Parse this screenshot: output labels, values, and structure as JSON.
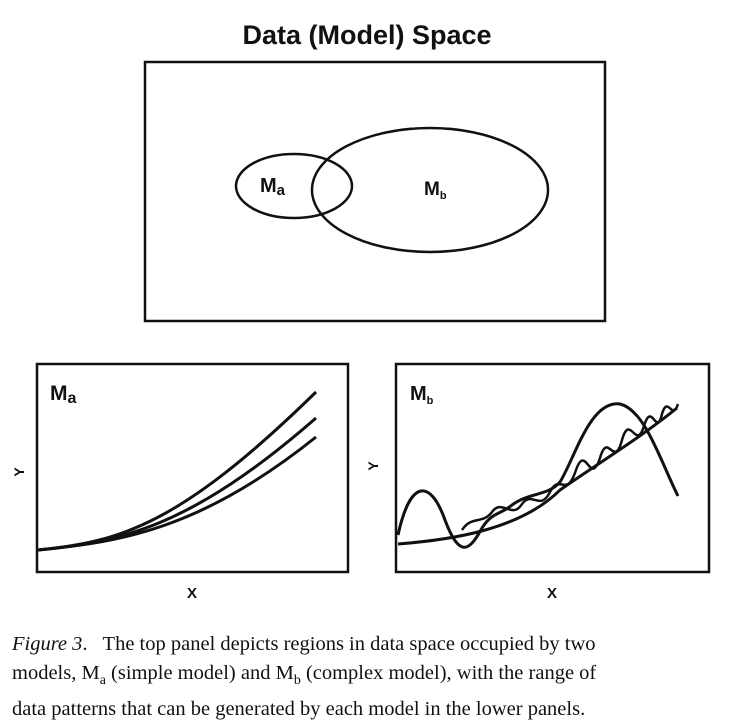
{
  "title": "Data (Model) Space",
  "top_panel": {
    "label_a_main": "M",
    "label_a_sub": "a",
    "label_b_main": "M",
    "label_b_sub": "b"
  },
  "left_panel": {
    "label_main": "M",
    "label_sub": "a",
    "x_label": "X",
    "y_label": "Y"
  },
  "right_panel": {
    "label_main": "M",
    "label_sub": "b",
    "x_label": "X",
    "y_label": "Y"
  },
  "caption": {
    "figure_label": "Figure 3",
    "line1_rest": ".   The top panel depicts regions in data space occupied by two",
    "line2_part1": "models, M",
    "line2_sub_a": "a",
    "line2_part2": " (simple model) and M",
    "line2_sub_b": "b",
    "line2_part3": " (complex model), with the range of",
    "line3": "data patterns that can be generated by each model in the lower panels."
  }
}
